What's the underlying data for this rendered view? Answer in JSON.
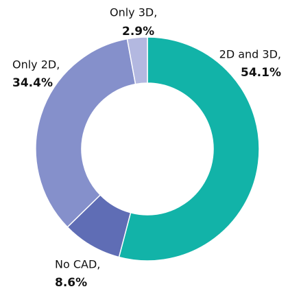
{
  "chart_data": {
    "type": "donut",
    "categories": [
      "2D and 3D,",
      "No CAD,",
      "Only 2D,",
      "Only 3D,"
    ],
    "values": [
      54.1,
      8.6,
      34.4,
      2.9
    ],
    "value_labels": [
      "54.1%",
      "8.6%",
      "34.4%",
      "2.9%"
    ],
    "colors": [
      "#12b3a8",
      "#5f6db5",
      "#8590cb",
      "#b3b8e0"
    ]
  }
}
